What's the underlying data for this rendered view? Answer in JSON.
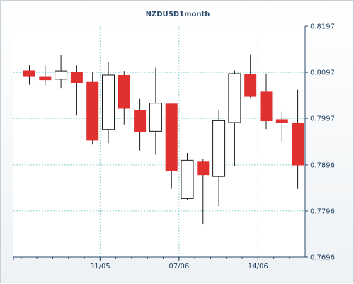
{
  "chart_data": {
    "type": "candlestick",
    "title": "NZDUSD1month",
    "xlabel": "",
    "ylabel": "",
    "ylim": [
      0.7696,
      0.8197
    ],
    "y_ticks": [
      "0.8197",
      "0.8097",
      "0.7997",
      "0.7896",
      "0.7796",
      "0.7696"
    ],
    "x_tick_labels": [
      {
        "label": "31/05",
        "index": 4.5
      },
      {
        "label": "07/06",
        "index": 9.5
      },
      {
        "label": "14/06",
        "index": 14.5
      }
    ],
    "grid": true,
    "up_color": "#ffffff",
    "down_color": "#e03030",
    "candles": [
      {
        "open": 0.8101,
        "high": 0.8112,
        "low": 0.807,
        "close": 0.8087
      },
      {
        "open": 0.8087,
        "high": 0.8112,
        "low": 0.8069,
        "close": 0.808
      },
      {
        "open": 0.8082,
        "high": 0.8135,
        "low": 0.8063,
        "close": 0.81
      },
      {
        "open": 0.8098,
        "high": 0.8112,
        "low": 0.8003,
        "close": 0.8074
      },
      {
        "open": 0.8076,
        "high": 0.8097,
        "low": 0.794,
        "close": 0.7949
      },
      {
        "open": 0.7973,
        "high": 0.8119,
        "low": 0.7943,
        "close": 0.8091
      },
      {
        "open": 0.8091,
        "high": 0.81,
        "low": 0.7984,
        "close": 0.8018
      },
      {
        "open": 0.8015,
        "high": 0.8039,
        "low": 0.7927,
        "close": 0.7967
      },
      {
        "open": 0.7969,
        "high": 0.8107,
        "low": 0.7918,
        "close": 0.803
      },
      {
        "open": 0.8029,
        "high": 0.8029,
        "low": 0.7844,
        "close": 0.7882
      },
      {
        "open": 0.7823,
        "high": 0.7922,
        "low": 0.7819,
        "close": 0.7906
      },
      {
        "open": 0.7903,
        "high": 0.7909,
        "low": 0.7768,
        "close": 0.7874
      },
      {
        "open": 0.7871,
        "high": 0.8015,
        "low": 0.7806,
        "close": 0.7992
      },
      {
        "open": 0.7988,
        "high": 0.8101,
        "low": 0.7893,
        "close": 0.8094
      },
      {
        "open": 0.8094,
        "high": 0.8136,
        "low": 0.8042,
        "close": 0.8044
      },
      {
        "open": 0.8055,
        "high": 0.8094,
        "low": 0.7974,
        "close": 0.7991
      },
      {
        "open": 0.7995,
        "high": 0.8012,
        "low": 0.7945,
        "close": 0.7987
      },
      {
        "open": 0.7987,
        "high": 0.8059,
        "low": 0.7844,
        "close": 0.7895
      }
    ]
  }
}
